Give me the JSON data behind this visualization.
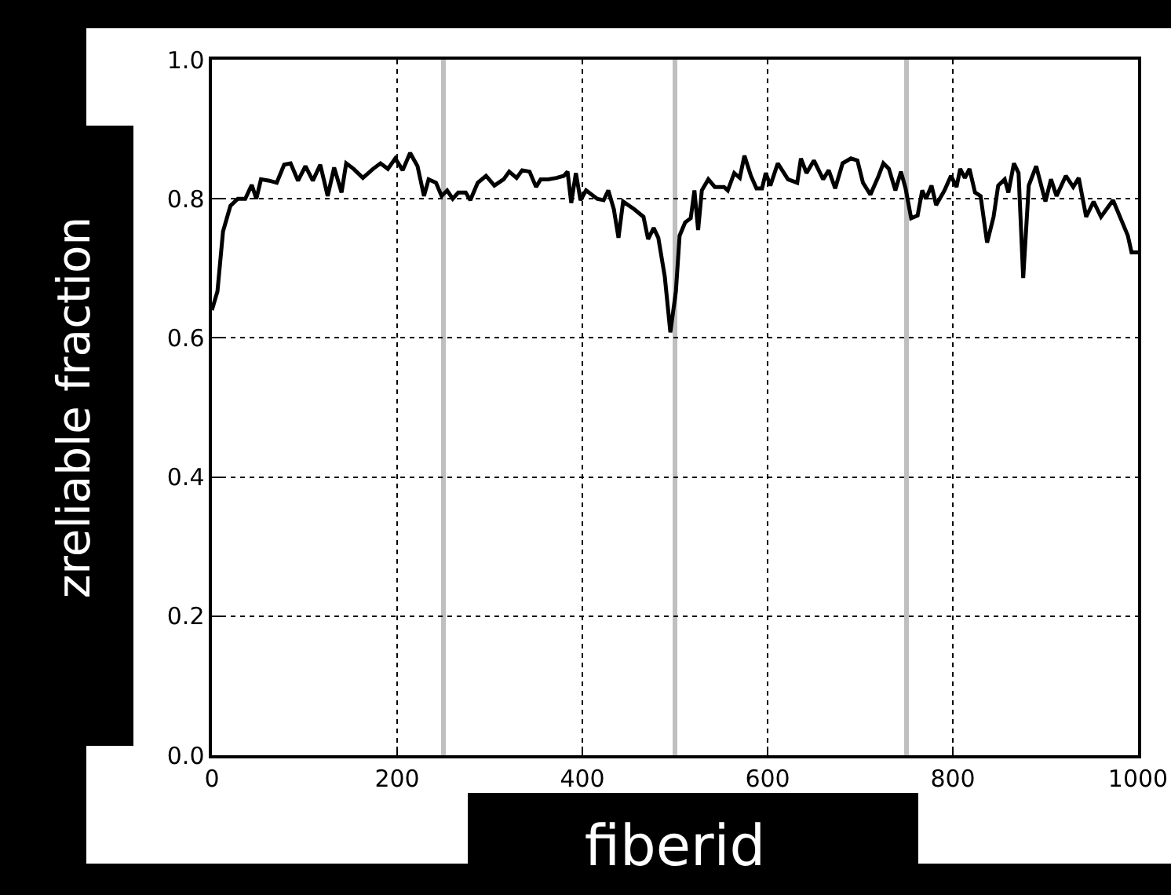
{
  "chart_data": {
    "type": "line",
    "xlabel": "fiberid",
    "ylabel": "zreliable fraction",
    "x": [
      0,
      6,
      12,
      20,
      28,
      36,
      43,
      48,
      53,
      62,
      70,
      78,
      85,
      93,
      101,
      109,
      117,
      125,
      132,
      140,
      145,
      153,
      163,
      174,
      182,
      190,
      198,
      206,
      214,
      222,
      229,
      234,
      242,
      248,
      254,
      260,
      266,
      274,
      279,
      287,
      296,
      305,
      315,
      321,
      329,
      335,
      343,
      350,
      355,
      363,
      372,
      380,
      384,
      388,
      393,
      398,
      404,
      416,
      423,
      428,
      434,
      439,
      444,
      456,
      466,
      471,
      477,
      482,
      489,
      495,
      501,
      505,
      511,
      517,
      521,
      525,
      529,
      536,
      543,
      553,
      557,
      564,
      570,
      575,
      582,
      588,
      594,
      598,
      603,
      611,
      622,
      632,
      636,
      642,
      650,
      660,
      666,
      673,
      681,
      690,
      697,
      703,
      711,
      719,
      725,
      731,
      738,
      744,
      749,
      755,
      762,
      767,
      771,
      777,
      782,
      791,
      798,
      804,
      808,
      813,
      818,
      824,
      830,
      837,
      844,
      849,
      856,
      860,
      866,
      871,
      876,
      882,
      890,
      900,
      906,
      912,
      922,
      930,
      936,
      944,
      952,
      960,
      973,
      989,
      993,
      1000
    ],
    "series": [
      {
        "color": "#000000",
        "values": [
          0.64,
          0.667,
          0.753,
          0.79,
          0.8,
          0.8,
          0.82,
          0.8,
          0.828,
          0.826,
          0.823,
          0.849,
          0.851,
          0.826,
          0.847,
          0.826,
          0.849,
          0.804,
          0.845,
          0.809,
          0.851,
          0.843,
          0.83,
          0.843,
          0.851,
          0.843,
          0.858,
          0.841,
          0.866,
          0.847,
          0.804,
          0.828,
          0.823,
          0.804,
          0.812,
          0.8,
          0.809,
          0.809,
          0.798,
          0.823,
          0.833,
          0.819,
          0.828,
          0.839,
          0.83,
          0.841,
          0.839,
          0.817,
          0.828,
          0.828,
          0.83,
          0.833,
          0.839,
          0.794,
          0.837,
          0.798,
          0.812,
          0.8,
          0.798,
          0.812,
          0.785,
          0.744,
          0.796,
          0.785,
          0.774,
          0.742,
          0.758,
          0.744,
          0.688,
          0.608,
          0.667,
          0.747,
          0.766,
          0.772,
          0.812,
          0.755,
          0.812,
          0.828,
          0.817,
          0.817,
          0.812,
          0.837,
          0.83,
          0.862,
          0.833,
          0.815,
          0.815,
          0.837,
          0.819,
          0.851,
          0.828,
          0.823,
          0.858,
          0.837,
          0.855,
          0.828,
          0.841,
          0.815,
          0.851,
          0.858,
          0.855,
          0.823,
          0.806,
          0.83,
          0.851,
          0.843,
          0.812,
          0.839,
          0.815,
          0.772,
          0.776,
          0.812,
          0.8,
          0.819,
          0.791,
          0.812,
          0.833,
          0.817,
          0.843,
          0.83,
          0.843,
          0.809,
          0.804,
          0.737,
          0.774,
          0.819,
          0.828,
          0.809,
          0.851,
          0.837,
          0.686,
          0.819,
          0.847,
          0.796,
          0.828,
          0.804,
          0.833,
          0.817,
          0.83,
          0.774,
          0.796,
          0.774,
          0.798,
          0.747,
          0.723,
          0.723
        ]
      }
    ],
    "xlim": [
      0,
      1000
    ],
    "xticks": [
      0,
      200,
      400,
      600,
      800,
      1000
    ],
    "ylim": [
      0,
      1
    ],
    "yticks": [
      {
        "value": 0,
        "label": "0.0"
      },
      {
        "value": 0.2,
        "label": "0.2"
      },
      {
        "value": 0.4,
        "label": "0.4"
      },
      {
        "value": 0.6,
        "label": "0.6"
      },
      {
        "value": 0.8,
        "label": "0.8"
      },
      {
        "value": 1,
        "label": "1.0"
      }
    ],
    "ref_lines": [
      {
        "axis": "x",
        "value": 250,
        "color": "#bfbfbf"
      },
      {
        "axis": "x",
        "value": 500,
        "color": "#bfbfbf"
      },
      {
        "axis": "x",
        "value": 750,
        "color": "#bfbfbf"
      }
    ],
    "grid": true,
    "line_style": "solid",
    "marker": "none"
  }
}
